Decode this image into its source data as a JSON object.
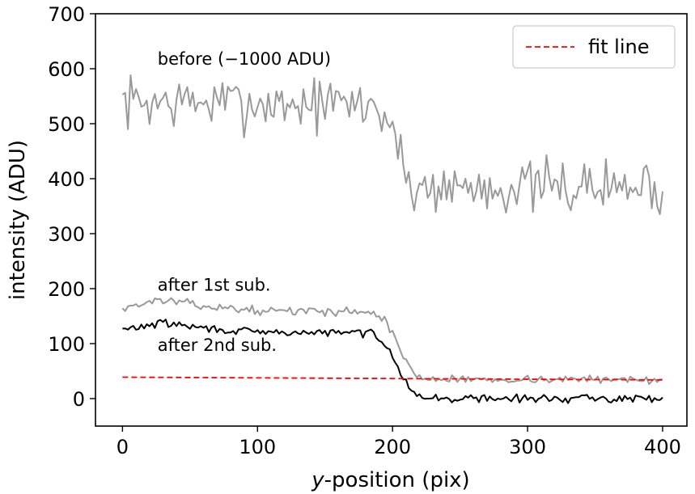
{
  "chart_data": {
    "type": "line",
    "xlabel_italic": "y",
    "xlabel_rest": "-position (pix)",
    "ylabel": "intensity (ADU)",
    "xlim": [
      -20,
      418
    ],
    "ylim": [
      -50,
      700
    ],
    "x_ticks": [
      0,
      100,
      200,
      300,
      400
    ],
    "y_ticks": [
      0,
      100,
      200,
      300,
      400,
      500,
      600,
      700
    ],
    "annotations": [
      {
        "text": "before (−1000 ADU)",
        "x": 26,
        "y": 607
      },
      {
        "text": "after 1st sub.",
        "x": 26,
        "y": 196
      },
      {
        "text": "after 2nd sub.",
        "x": 26,
        "y": 87
      }
    ],
    "legend": {
      "label": "fit line",
      "placement": "top-right"
    },
    "series": [
      {
        "name": "before (−1000 ADU)",
        "color": "#999999",
        "segments": [
          [
            0,
            540
          ],
          [
            185,
            535
          ],
          [
            200,
            500
          ],
          [
            208,
            410
          ],
          [
            215,
            385
          ],
          [
            400,
            385
          ]
        ],
        "noise": 35,
        "seed": 7
      },
      {
        "name": "after 1st sub.",
        "color": "#999999",
        "segments": [
          [
            0,
            165
          ],
          [
            30,
            180
          ],
          [
            60,
            168
          ],
          [
            100,
            160
          ],
          [
            185,
            158
          ],
          [
            195,
            140
          ],
          [
            205,
            95
          ],
          [
            215,
            45
          ],
          [
            225,
            35
          ],
          [
            400,
            35
          ]
        ],
        "noise": 5,
        "seed": 13
      },
      {
        "name": "after 2nd sub.",
        "color": "#000000",
        "segments": [
          [
            0,
            125
          ],
          [
            30,
            138
          ],
          [
            60,
            128
          ],
          [
            100,
            120
          ],
          [
            185,
            120
          ],
          [
            195,
            100
          ],
          [
            205,
            55
          ],
          [
            215,
            10
          ],
          [
            225,
            0
          ],
          [
            400,
            0
          ]
        ],
        "noise": 5,
        "seed": 29
      },
      {
        "name": "fit line",
        "color": "#ff0000",
        "dashed": true,
        "x": [
          0,
          400
        ],
        "y": [
          39,
          34
        ]
      }
    ]
  }
}
